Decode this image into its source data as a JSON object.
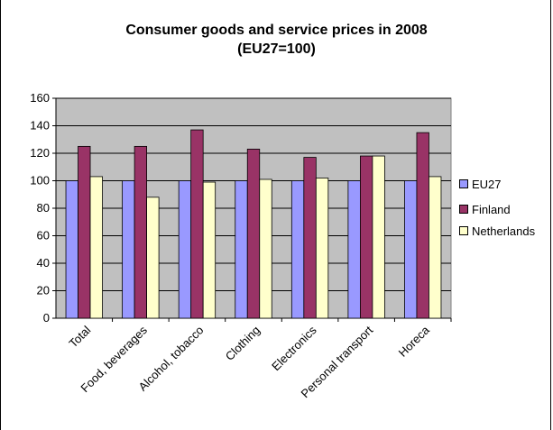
{
  "chart_data": {
    "type": "bar",
    "title_line1": "Consumer goods and service prices in 2008",
    "title_line2": "(EU27=100)",
    "categories": [
      "Total",
      "Food, beverages",
      "Alcohol, tobacco",
      "Clothing",
      "Electronics",
      "Personal transport",
      "Horeca"
    ],
    "series": [
      {
        "name": "EU27",
        "values": [
          100,
          100,
          100,
          100,
          100,
          100,
          100
        ],
        "color": "#9999ff"
      },
      {
        "name": "Finland",
        "values": [
          125,
          125,
          137,
          123,
          117,
          118,
          135
        ],
        "color": "#993366"
      },
      {
        "name": "Netherlands",
        "values": [
          103,
          88,
          99,
          101,
          102,
          118,
          103
        ],
        "color": "#ffffcc"
      }
    ],
    "yticks": [
      0,
      20,
      40,
      60,
      80,
      100,
      120,
      140,
      160
    ],
    "ylim": [
      0,
      160
    ],
    "grid": true,
    "plot_background": "#c0c0c0",
    "legend_position": "right"
  }
}
